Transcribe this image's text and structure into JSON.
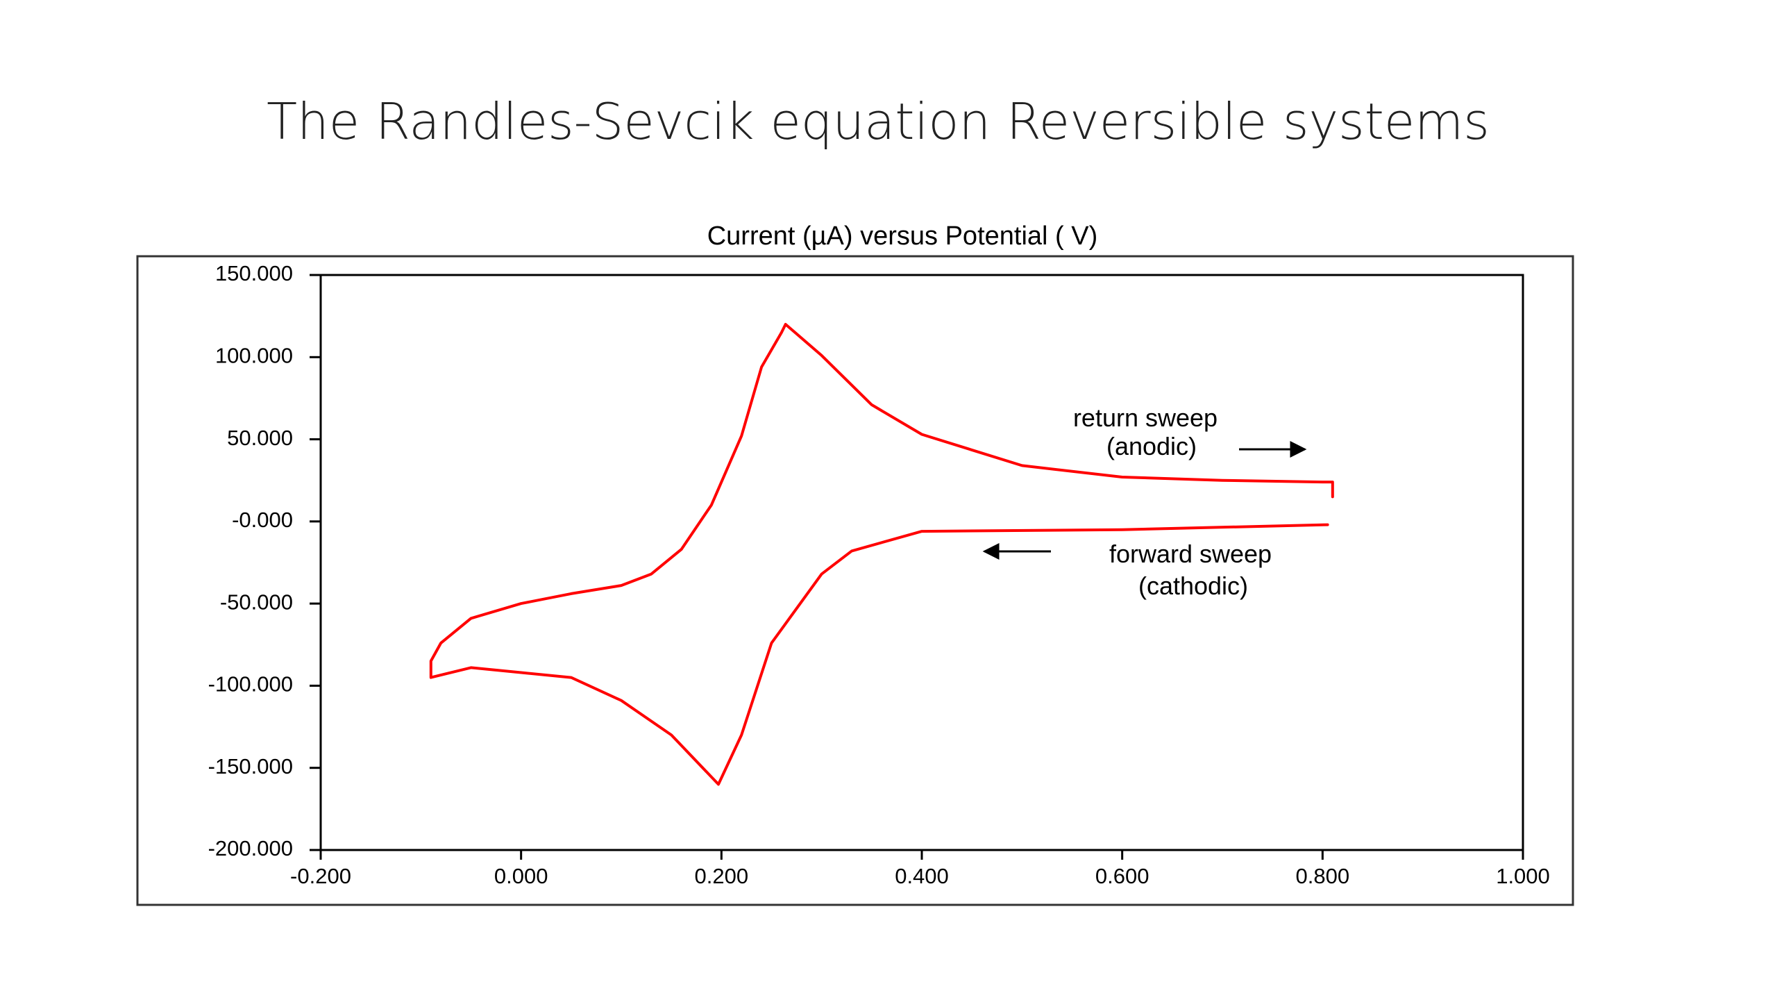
{
  "slide": {
    "title": "The Randles-Sevcik equation Reversible systems"
  },
  "chart_data": {
    "type": "line",
    "title": "Current (µA) versus Potential ( V)",
    "color": "#ff0000",
    "x": [
      0.805,
      0.6,
      0.4,
      0.33,
      0.3,
      0.25,
      0.22,
      0.197,
      0.15,
      0.1,
      0.05,
      0.0,
      -0.05,
      -0.09,
      -0.09,
      -0.08,
      -0.05,
      0.0,
      0.05,
      0.1,
      0.13,
      0.16,
      0.19,
      0.22,
      0.24,
      0.26,
      0.264,
      0.3,
      0.35,
      0.4,
      0.5,
      0.6,
      0.7,
      0.8,
      0.81,
      0.81
    ],
    "values": [
      -2,
      -5,
      -6,
      -18,
      -32,
      -74,
      -130,
      -160,
      -130,
      -109,
      -95,
      -92,
      -89,
      -95,
      -85,
      -74,
      -59,
      -50,
      -44,
      -39,
      -32,
      -17,
      10,
      52,
      94,
      115,
      120,
      101,
      71,
      53,
      34,
      27,
      25,
      24,
      24,
      15
    ],
    "xlim": [
      -0.2,
      1.0
    ],
    "xticks": [
      {
        "value": -0.2,
        "label": "-0.200"
      },
      {
        "value": 0.0,
        "label": "0.000"
      },
      {
        "value": 0.2,
        "label": "0.200"
      },
      {
        "value": 0.4,
        "label": "0.400"
      },
      {
        "value": 0.6,
        "label": "0.600"
      },
      {
        "value": 0.8,
        "label": "0.800"
      },
      {
        "value": 1.0,
        "label": "1.000"
      }
    ],
    "ylim": [
      -200,
      150
    ],
    "yticks": [
      {
        "value": 150,
        "label": "150.000"
      },
      {
        "value": 100,
        "label": "100.000"
      },
      {
        "value": 50,
        "label": "50.000"
      },
      {
        "value": 0,
        "label": "-0.000"
      },
      {
        "value": -50,
        "label": "-50.000"
      },
      {
        "value": -100,
        "label": "-100.000"
      },
      {
        "value": -150,
        "label": "-150.000"
      },
      {
        "value": -200,
        "label": "-200.000"
      }
    ],
    "grid": false,
    "annotations": [
      "return sweep",
      "(anodic)",
      "forward sweep",
      "(cathodic)"
    ]
  }
}
